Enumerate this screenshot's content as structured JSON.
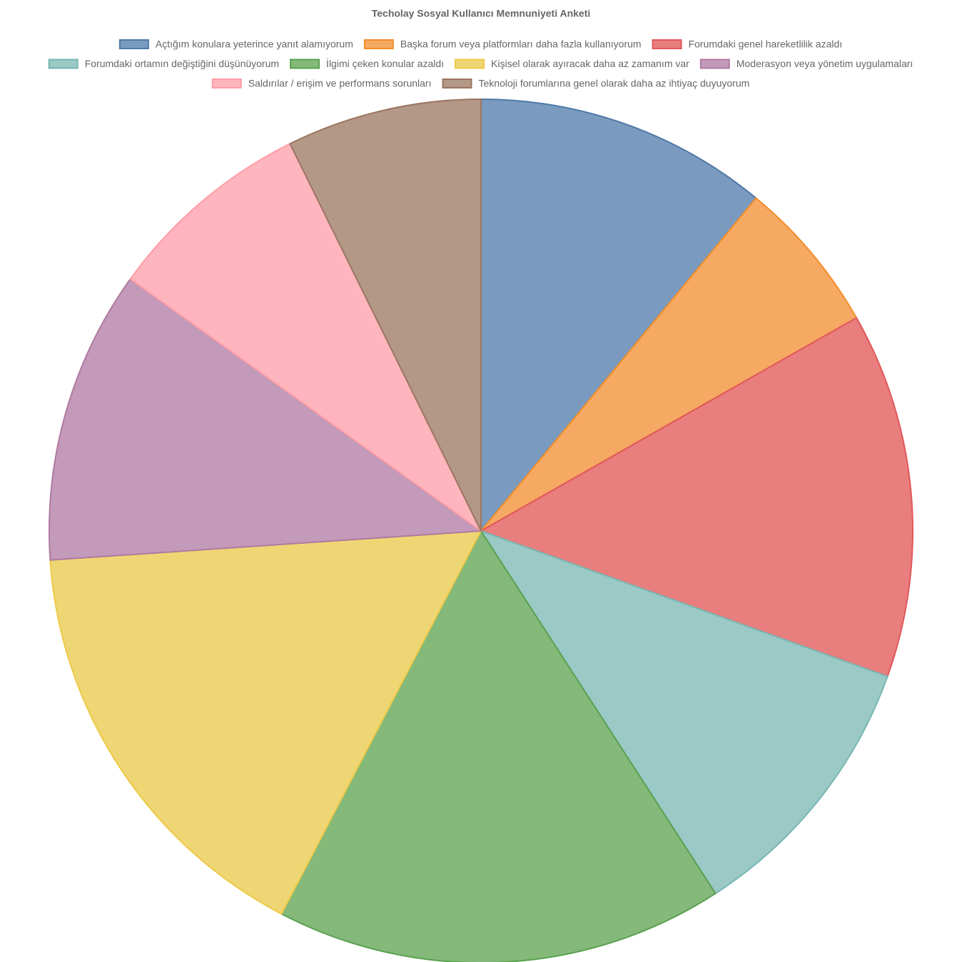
{
  "chart_data": {
    "type": "pie",
    "title": "Techolay Sosyal Kullanıcı Memnuniyeti Anketi",
    "categories": [
      "Açtığım konulara yeterince yanıt alamıyorum",
      "Başka forum veya platformları daha fazla kullanıyorum",
      "Forumdaki genel hareketlilik azaldı",
      "Forumdaki ortamın değiştiğini düşünüyorum",
      "İlgimi çeken konular azaldı",
      "Kişisel olarak ayıracak daha az zamanım var",
      "Moderasyon veya yönetim uygulamaları",
      "Saldırılar / erişim ve performans sorunları",
      "Teknoloji forumlarına genel olarak daha az ihtiyaç duyuyorum"
    ],
    "values": [
      11.0,
      5.8,
      13.7,
      10.4,
      16.8,
      16.3,
      11.0,
      7.8,
      7.3
    ],
    "colors": [
      "#7a9bbf",
      "#f5a962",
      "#e87e7e",
      "#9bc9c6",
      "#84b97a",
      "#efd674",
      "#c39ab9",
      "#ffb5bd",
      "#b39888"
    ],
    "border_colors": [
      "#4e79a7",
      "#f28e2b",
      "#e15759",
      "#76b7b2",
      "#59a14f",
      "#edc948",
      "#b07aa1",
      "#ff9da7",
      "#9c755f"
    ],
    "legend": "top"
  }
}
